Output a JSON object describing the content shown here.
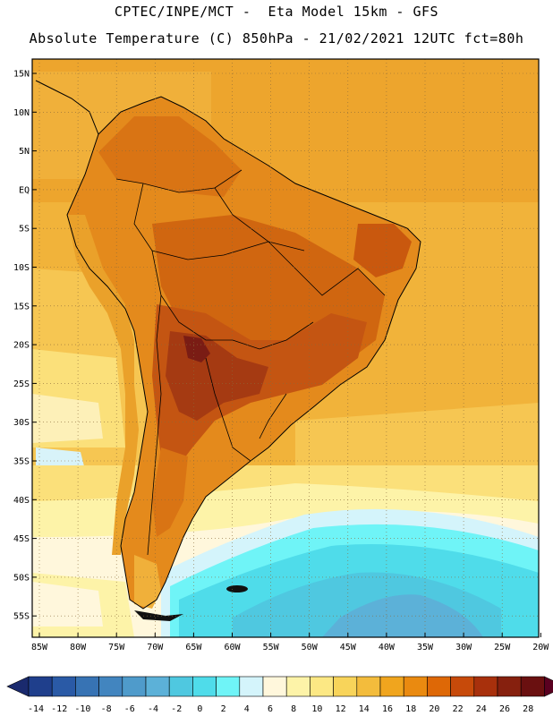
{
  "title_line1": "CPTEC/INPE/MCT -  Eta Model 15km - GFS",
  "title_line2": "Absolute Temperature (C) 850hPa - 21/02/2021 12UTC fct=80h",
  "lat_labels": [
    "15N",
    "10N",
    "5N",
    "EQ",
    "5S",
    "10S",
    "15S",
    "20S",
    "25S",
    "30S",
    "35S",
    "40S",
    "45S",
    "50S",
    "55S"
  ],
  "lon_labels": [
    "85W",
    "80W",
    "75W",
    "70W",
    "65W",
    "60W",
    "55W",
    "50W",
    "45W",
    "40W",
    "35W",
    "30W",
    "25W",
    "20W"
  ],
  "legend": {
    "ticks": [
      "-14",
      "-12",
      "-10",
      "-8",
      "-6",
      "-4",
      "-2",
      "0",
      "2",
      "4",
      "6",
      "8",
      "10",
      "12",
      "14",
      "16",
      "18",
      "20",
      "22",
      "24",
      "26",
      "28"
    ],
    "colors": [
      "#1f3f8c",
      "#2a5aa6",
      "#3773b4",
      "#4285bf",
      "#4f9bcb",
      "#5cb1d8",
      "#4fc8e0",
      "#4fdcea",
      "#6ff4f7",
      "#d4f4fb",
      "#fff7dc",
      "#fdf3a8",
      "#fce884",
      "#f8d45a",
      "#f3bc3c",
      "#f0a51e",
      "#ea8a10",
      "#de6806",
      "#c74a0a",
      "#a8300c",
      "#86200e",
      "#6a1010"
    ],
    "under_color": "#1a2a6e",
    "over_color": "#5a0020"
  }
}
